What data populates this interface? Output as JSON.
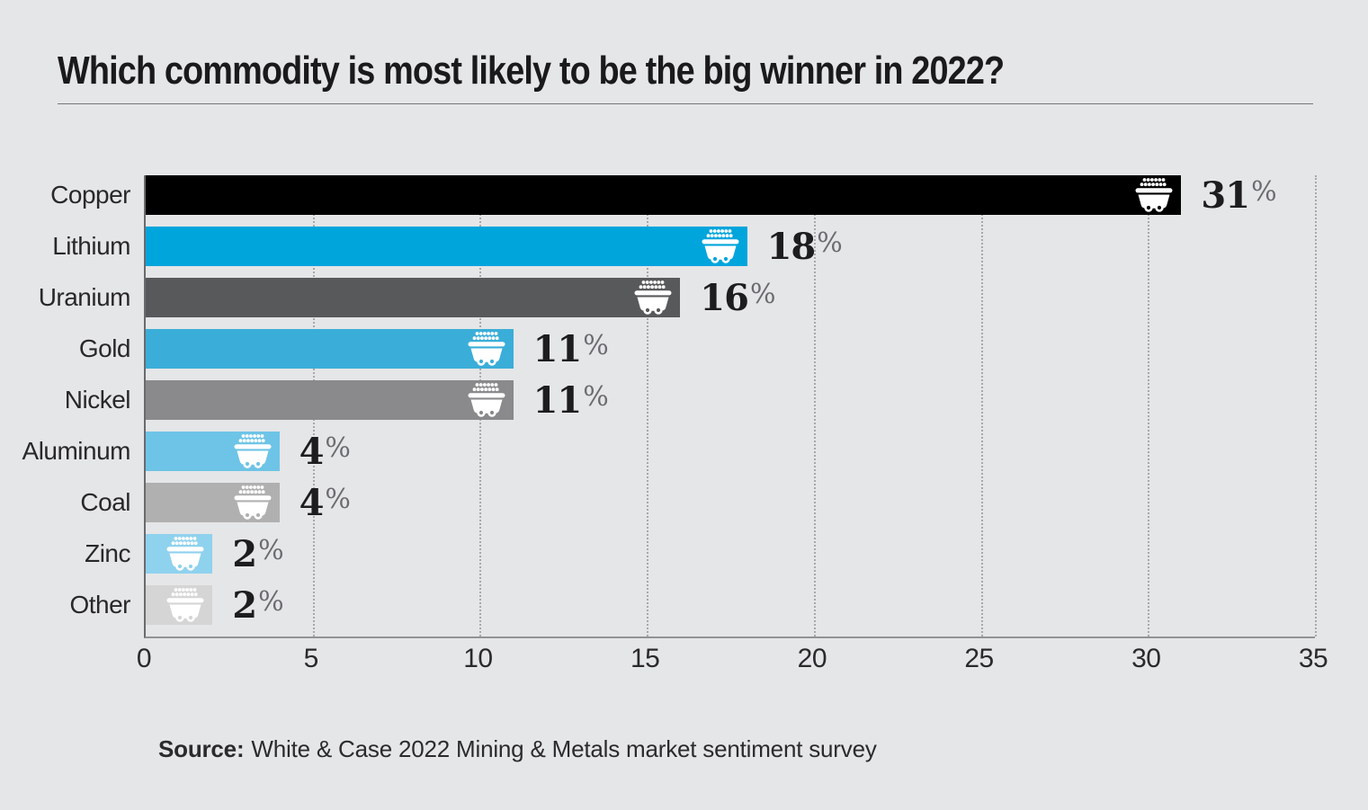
{
  "title": "Which commodity is most likely to be the big winner in 2022?",
  "source": {
    "label": "Source:",
    "text": "White & Case 2022 Mining & Metals market sentiment survey"
  },
  "chart_data": {
    "type": "bar",
    "orientation": "horizontal",
    "title": "Which commodity is most likely to be the big winner in 2022?",
    "categories": [
      "Copper",
      "Lithium",
      "Uranium",
      "Gold",
      "Nickel",
      "Aluminum",
      "Coal",
      "Zinc",
      "Other"
    ],
    "values": [
      31,
      18,
      16,
      11,
      11,
      4,
      4,
      2,
      2
    ],
    "value_labels": [
      "31%",
      "18%",
      "16%",
      "11%",
      "11%",
      "4%",
      "4%",
      "2%",
      "2%"
    ],
    "unit": "%",
    "bar_colors": [
      "#000000",
      "#00a5dc",
      "#58595b",
      "#3aaed8",
      "#8a8a8c",
      "#6ec4e6",
      "#b0b0b1",
      "#8fd2ee",
      "#d5d5d6"
    ],
    "bar_icon": "mine-cart-icon",
    "icon_color": "#ffffff",
    "xlabel": "",
    "ylabel": "",
    "xlim": [
      0,
      35
    ],
    "xticks": [
      0,
      5,
      10,
      15,
      20,
      25,
      30,
      35
    ],
    "grid": "dotted-vertical",
    "legend": "none",
    "background": "#e5e6e7"
  }
}
